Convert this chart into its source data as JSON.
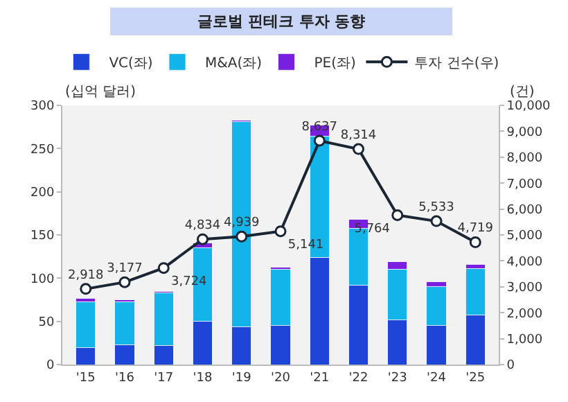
{
  "chart_data": {
    "type": "bar",
    "title": "글로벌 핀테크 투자 동향",
    "ylabel": "(십억 달러)",
    "y2label": "(건)",
    "categories": [
      "'15",
      "'16",
      "'17",
      "'18",
      "'19",
      "'20",
      "'21",
      "'22",
      "'23",
      "'24",
      "'25"
    ],
    "stacked": true,
    "series": [
      {
        "name": "VC(좌)",
        "color": "#1f45d8",
        "values": [
          20,
          23,
          22,
          50,
          44,
          45,
          124,
          92,
          52,
          45,
          57
        ]
      },
      {
        "name": "M&A(좌)",
        "color": "#12b4ea",
        "values": [
          53,
          50,
          61,
          85,
          237,
          65,
          140,
          66,
          58,
          45,
          54
        ]
      },
      {
        "name": "PE(좌)",
        "color": "#7a1fe0",
        "values": [
          4,
          2,
          2,
          6,
          2,
          3,
          13,
          10,
          9,
          6,
          5
        ]
      },
      {
        "name": "투자 건수(우)",
        "type": "line",
        "axis": "y2",
        "color": "#1a2535",
        "marker": "circle",
        "values": [
          2918,
          3177,
          3724,
          4834,
          4939,
          5141,
          8637,
          8314,
          5764,
          5533,
          4719
        ],
        "value_labels": [
          "2,918",
          "3,177",
          "3,724",
          "4,834",
          "4,939",
          "5,141",
          "8,637",
          "8,314",
          "5,764",
          "5,533",
          "4,719"
        ]
      }
    ],
    "ylim": [
      0,
      300
    ],
    "yticks": [
      0,
      50,
      100,
      150,
      200,
      250,
      300
    ],
    "y2lim": [
      0,
      10000
    ],
    "y2ticks": [
      0,
      {
        "value": 1000,
        "label": "1,000"
      },
      {
        "value": 2000,
        "label": "2,000"
      },
      {
        "value": 3000,
        "label": "3,000"
      },
      {
        "value": 4000,
        "label": "4,000"
      },
      {
        "value": 5000,
        "label": "5,000"
      },
      {
        "value": 6000,
        "label": "6,000"
      },
      {
        "value": 7000,
        "label": "7,000"
      },
      {
        "value": 8000,
        "label": "8,000"
      },
      {
        "value": 9000,
        "label": "9,000"
      },
      {
        "value": 10000,
        "label": "10,000"
      }
    ],
    "grid": false,
    "legend": "top"
  }
}
